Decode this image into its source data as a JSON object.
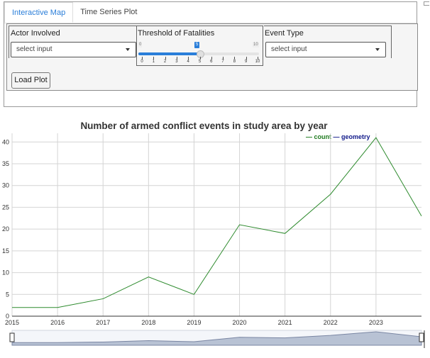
{
  "tabs": [
    {
      "label": "Interactive Map",
      "active": true
    },
    {
      "label": "Time Series Plot",
      "active": false
    }
  ],
  "controls": {
    "actor": {
      "label": "Actor Involved",
      "value": "select input"
    },
    "threshold": {
      "label": "Threshold of Fatalities",
      "min": 0,
      "max": 10,
      "value": 5,
      "min_label": "0",
      "max_label": "10",
      "value_label": "5",
      "ticks": [
        "0",
        "1",
        "2",
        "3",
        "4",
        "5",
        "6",
        "7",
        "8",
        "9",
        "10"
      ]
    },
    "event": {
      "label": "Event Type",
      "value": "select input"
    },
    "load_button": "Load Plot"
  },
  "colors": {
    "accent": "#2a7ed9",
    "count_line": "#2e8b2e",
    "geometry_line": "#111a8a"
  },
  "chart_data": {
    "type": "line",
    "title": "Number of armed conflict events in study area by year",
    "legend": "top-right",
    "legend_items": [
      "count",
      "geometry"
    ],
    "grid": true,
    "x": [
      2015,
      2016,
      2017,
      2018,
      2019,
      2020,
      2021,
      2022,
      2023,
      2024
    ],
    "x_tick_labels": [
      "2015",
      "2016",
      "2017",
      "2018",
      "2019",
      "2020",
      "2021",
      "2022",
      "2023"
    ],
    "xlim": [
      2015,
      2024
    ],
    "ylim": [
      0,
      42
    ],
    "y_ticks": [
      0,
      5,
      10,
      15,
      20,
      25,
      30,
      35,
      40
    ],
    "series": [
      {
        "name": "count",
        "values": [
          2,
          2,
          4,
          9,
          5,
          21,
          19,
          28,
          41,
          23
        ]
      }
    ],
    "range_selector": true
  }
}
